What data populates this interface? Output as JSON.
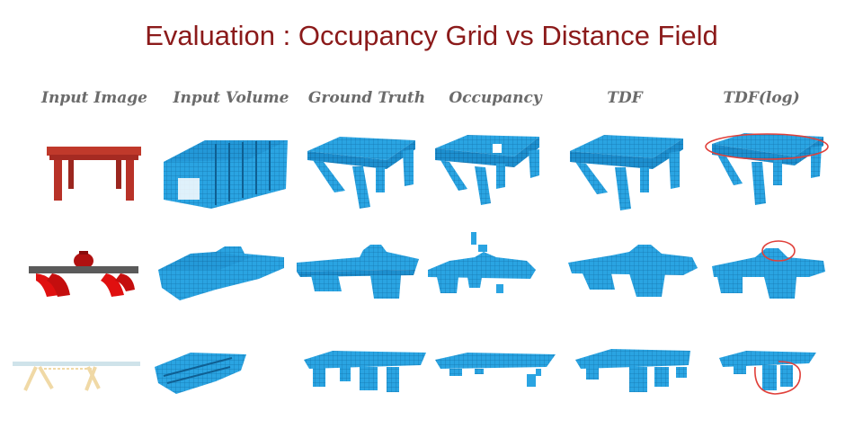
{
  "title": "Evaluation : Occupancy Grid vs Distance Field",
  "columns": [
    "Input Image",
    "Input Volume",
    "Ground Truth",
    "Occupancy",
    "TDF",
    "TDF(log)"
  ],
  "colors": {
    "title": "#8b1a1a",
    "voxel": "#29a3e0",
    "voxel_dark": "#1577b0",
    "annotation": "#e0403a"
  },
  "rows": [
    {
      "object": "table",
      "input_image_colors": [
        "#c0392b"
      ]
    },
    {
      "object": "bench-with-vase",
      "input_image_colors": [
        "#555555",
        "#e01010",
        "#b01010"
      ]
    },
    {
      "object": "glass-table",
      "input_image_colors": [
        "#cfe3ea",
        "#f0d9a6"
      ]
    }
  ],
  "annotations": [
    "tabletop-circle",
    "vase-circle",
    "legs-circle"
  ]
}
